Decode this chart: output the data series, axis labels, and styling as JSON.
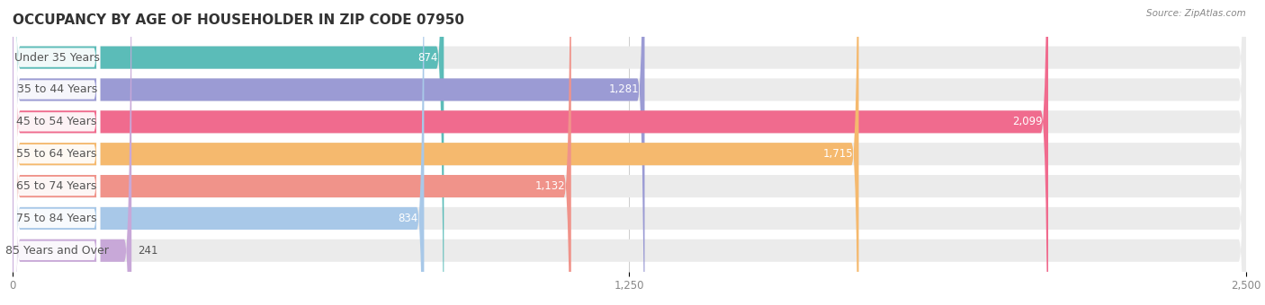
{
  "title": "OCCUPANCY BY AGE OF HOUSEHOLDER IN ZIP CODE 07950",
  "source": "Source: ZipAtlas.com",
  "categories": [
    "Under 35 Years",
    "35 to 44 Years",
    "45 to 54 Years",
    "55 to 64 Years",
    "65 to 74 Years",
    "75 to 84 Years",
    "85 Years and Over"
  ],
  "values": [
    874,
    1281,
    2099,
    1715,
    1132,
    834,
    241
  ],
  "bar_colors": [
    "#5bbcb8",
    "#9b9bd4",
    "#f06b8e",
    "#f5b96e",
    "#f0938a",
    "#a8c8e8",
    "#c8a8d8"
  ],
  "bar_bg_color": "#ebebeb",
  "xlim": [
    0,
    2500
  ],
  "xticks": [
    0,
    1250,
    2500
  ],
  "title_fontsize": 11,
  "label_fontsize": 9,
  "value_fontsize": 8.5,
  "background_color": "#ffffff",
  "text_dark": "#555555",
  "text_white": "#ffffff",
  "label_bg_color": "#ffffff",
  "grid_color": "#cccccc",
  "tick_color": "#888888",
  "source_color": "#888888"
}
